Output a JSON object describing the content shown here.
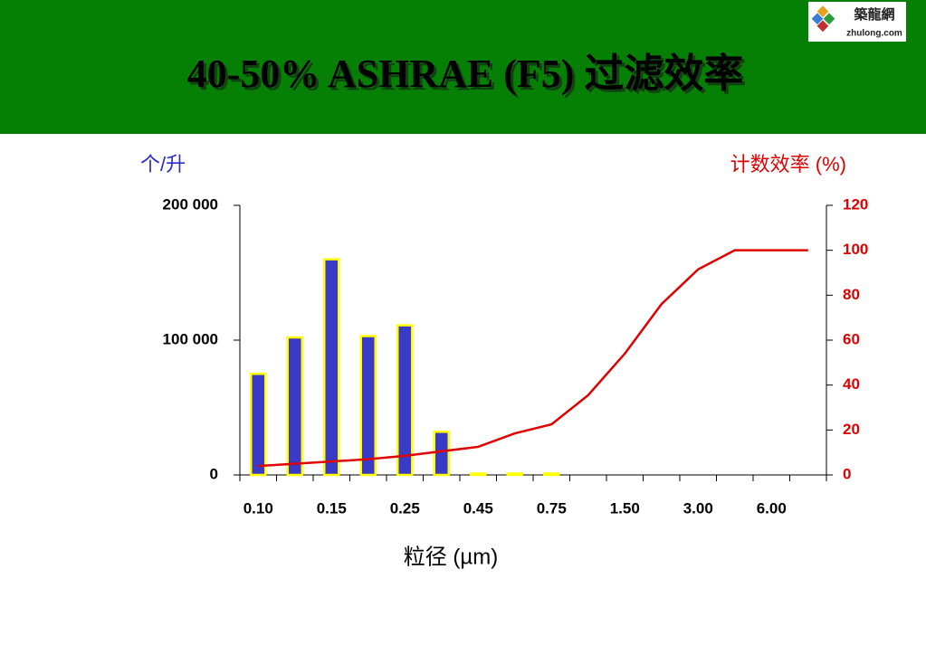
{
  "header": {
    "title": "40-50% ASHRAE (F5) 过滤效率",
    "logo": {
      "name": "築龍網",
      "url": "zhulong.com"
    }
  },
  "chart_data": {
    "type": "bar",
    "ylabel": "个/升",
    "y2label": "计数效率 (%)",
    "xlabel": "粒径 (µm)",
    "categories": [
      "0.10",
      null,
      "0.15",
      null,
      "0.25",
      null,
      "0.45",
      null,
      "0.75",
      null,
      "1.50",
      null,
      "3.00",
      null,
      "6.00",
      null
    ],
    "series": [
      {
        "type": "bar",
        "color": "#3a3ac8",
        "border_color": "#ffff00",
        "values": [
          75000,
          102000,
          160000,
          103000,
          111000,
          32000,
          1000,
          1000,
          1000,
          null,
          null,
          null,
          null,
          null,
          null,
          null
        ]
      },
      {
        "type": "line",
        "axis": "y2",
        "color": "#e00000",
        "values": [
          4,
          5,
          6,
          7,
          8.5,
          10.5,
          12.5,
          18.5,
          22.5,
          35.5,
          54,
          76,
          91.5,
          100,
          100,
          100
        ]
      }
    ],
    "ylim": [
      0,
      200000
    ],
    "yticks": [
      0,
      {
        "value": 100000,
        "label": "100 000"
      },
      {
        "value": 200000,
        "label": "200 000"
      }
    ],
    "y2lim": [
      0,
      120
    ],
    "y2ticks": [
      0,
      20,
      40,
      60,
      80,
      100,
      120
    ]
  }
}
